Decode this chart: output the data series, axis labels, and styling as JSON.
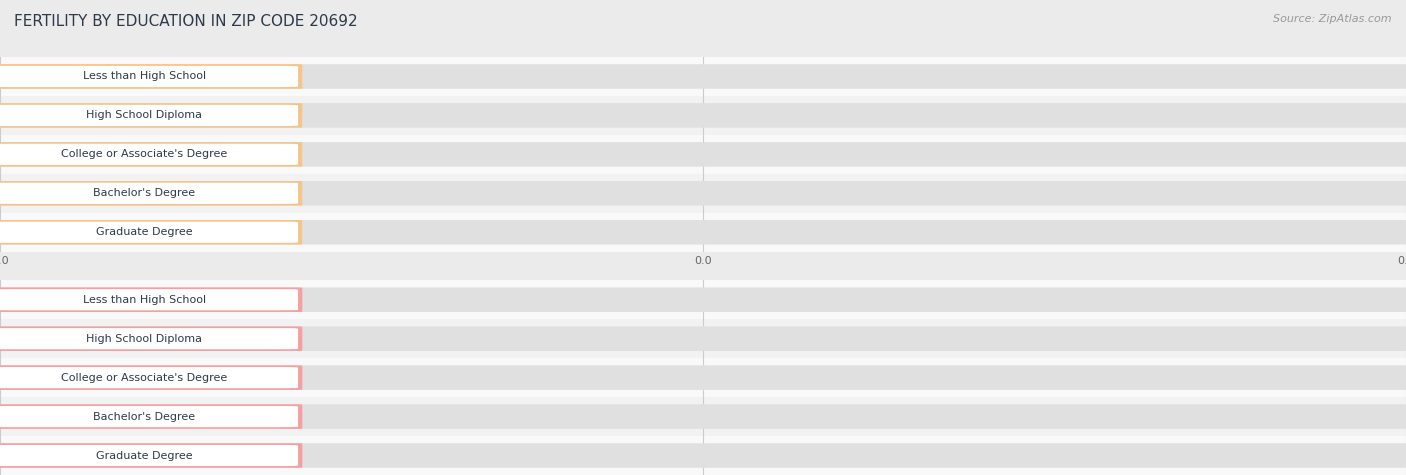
{
  "title": "FERTILITY BY EDUCATION IN ZIP CODE 20692",
  "source": "Source: ZipAtlas.com",
  "categories": [
    "Less than High School",
    "High School Diploma",
    "College or Associate's Degree",
    "Bachelor's Degree",
    "Graduate Degree"
  ],
  "values_top": [
    0.0,
    0.0,
    0.0,
    0.0,
    0.0
  ],
  "values_bottom": [
    0.0,
    0.0,
    0.0,
    0.0,
    0.0
  ],
  "bar_color_top": "#f5c48a",
  "bar_color_bottom": "#f4a0a0",
  "label_color": "#2d3a4a",
  "bg_color": "#ebebeb",
  "row_bg_even": "#f9f9f9",
  "row_bg_odd": "#f2f2f2",
  "grid_color": "#cccccc",
  "source_color": "#999999",
  "title_color": "#2d3a4a",
  "title_fontsize": 11,
  "label_fontsize": 8.0,
  "value_fontsize": 7.5,
  "tick_fontsize": 8,
  "fig_width": 14.06,
  "fig_height": 4.75
}
